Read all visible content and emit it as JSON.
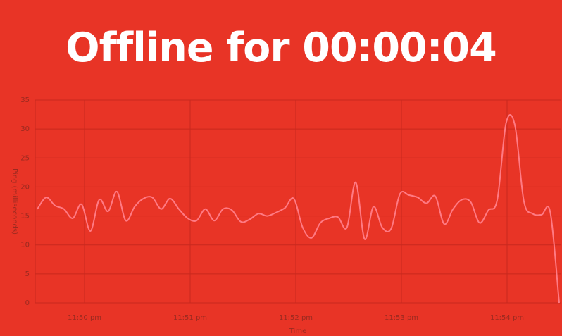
{
  "status": {
    "title": "Offline for 00:00:04"
  },
  "colors": {
    "background": "#e83426",
    "line": "#ff7a84",
    "grid": "#c8281e",
    "tick_text": "#9a2a20"
  },
  "chart_data": {
    "type": "line",
    "xlabel": "Time",
    "ylabel": "Ping (milliseconds)",
    "ylim": [
      0,
      35
    ],
    "y_ticks": [
      0,
      5,
      10,
      15,
      20,
      25,
      30,
      35
    ],
    "x_tick_labels": [
      "11:50 pm",
      "11:51 pm",
      "11:52 pm",
      "11:53 pm",
      "11:54 pm"
    ],
    "grid": true,
    "legend": "none",
    "series": [
      {
        "values": [
          16.2,
          18.2,
          16.8,
          16.2,
          14.6,
          17.0,
          12.4,
          17.8,
          15.8,
          19.2,
          14.2,
          16.6,
          18.0,
          18.2,
          16.2,
          18.0,
          16.2,
          14.6,
          14.2,
          16.2,
          14.2,
          16.2,
          16.0,
          14.0,
          14.4,
          15.4,
          15.0,
          15.6,
          16.4,
          18.0,
          13.0,
          11.2,
          13.8,
          14.6,
          14.8,
          13.0,
          20.8,
          11.0,
          16.6,
          13.0,
          12.8,
          18.8,
          18.6,
          18.2,
          17.2,
          18.4,
          13.6,
          16.2,
          17.8,
          17.4,
          13.8,
          16.0,
          17.8,
          31.0,
          30.6,
          17.6,
          15.4,
          15.2,
          15.6,
          0.0
        ]
      }
    ]
  }
}
